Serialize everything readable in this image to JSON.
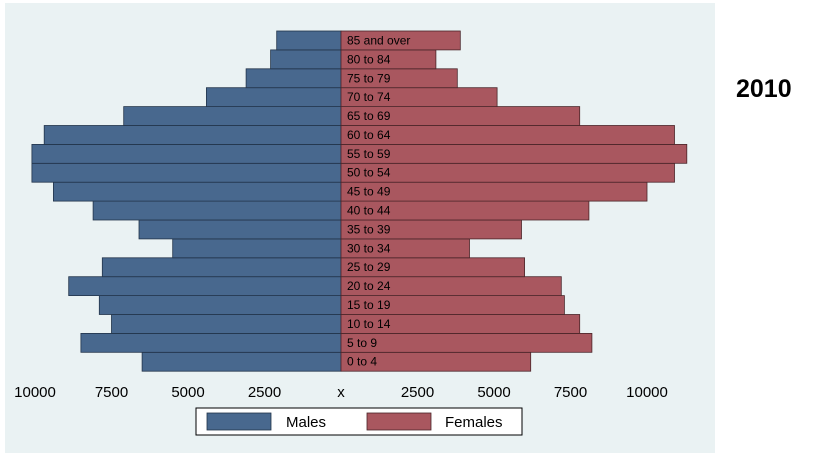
{
  "chart_data": {
    "type": "bar",
    "orientation": "horizontal",
    "layout": "population-pyramid",
    "categories": [
      "0 to 4",
      "5 to 9",
      "10 to 14",
      "15 to 19",
      "20 to 24",
      "25 to 29",
      "30 to 34",
      "35 to 39",
      "40 to 44",
      "45 to 49",
      "50 to 54",
      "55 to 59",
      "60 to 64",
      "65 to 69",
      "70 to 74",
      "75 to 79",
      "80 to 84",
      "85 and over"
    ],
    "series": [
      {
        "name": "Males",
        "side": "left",
        "color": "#48688e",
        "values": [
          6500,
          8500,
          7500,
          7900,
          8900,
          7800,
          5500,
          6600,
          8100,
          9400,
          10100,
          10100,
          9700,
          7100,
          4400,
          3100,
          2300,
          2100
        ]
      },
      {
        "name": "Females",
        "side": "right",
        "color": "#a9575f",
        "values": [
          6200,
          8200,
          7800,
          7300,
          7200,
          6000,
          4200,
          5900,
          8100,
          10000,
          10900,
          11300,
          10900,
          7800,
          5100,
          3800,
          3100,
          3900
        ]
      }
    ],
    "xticks_left": [
      "10000",
      "7500",
      "5000",
      "2500"
    ],
    "xticks_left_values": [
      10000,
      7500,
      5000,
      2500
    ],
    "center_label": "x",
    "xticks_right": [
      "2500",
      "5000",
      "7500",
      "10000"
    ],
    "xticks_right_values": [
      2500,
      5000,
      7500,
      10000
    ],
    "legend": [
      "Males",
      "Females"
    ],
    "legend_position": "bottom",
    "side_label": "2010",
    "grid": false,
    "background": "#eaf2f3"
  }
}
